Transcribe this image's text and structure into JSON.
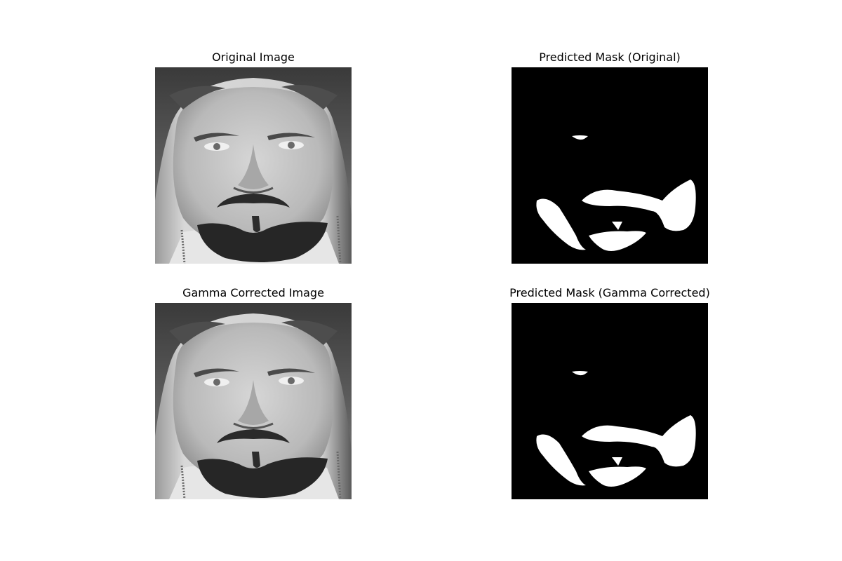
{
  "figure": {
    "panels": [
      {
        "title": "Original Image",
        "kind": "photo"
      },
      {
        "title": "Predicted Mask (Original)",
        "kind": "mask"
      },
      {
        "title": "Gamma Corrected Image",
        "kind": "photo"
      },
      {
        "title": "Predicted Mask (Gamma Corrected)",
        "kind": "mask"
      }
    ]
  },
  "colors": {
    "background": "#ffffff",
    "mask_background": "#000000",
    "mask_foreground": "#ffffff"
  }
}
